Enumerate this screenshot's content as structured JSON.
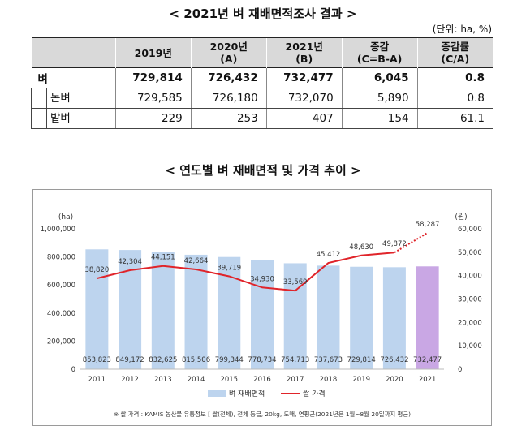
{
  "table_title": "< 2021년 벼 재배면적조사 결과 >",
  "unit_note": "(단위: ha, %)",
  "table": {
    "headers": [
      "",
      "2019년",
      "2020년\n(A)",
      "2021년\n(B)",
      "증감\n(C=B-A)",
      "증감률\n(C/A)"
    ],
    "rows": [
      {
        "label": "벼",
        "values": [
          "729,814",
          "726,432",
          "732,477",
          "6,045",
          "0.8"
        ]
      },
      {
        "label": "논벼",
        "values": [
          "729,585",
          "726,180",
          "732,070",
          "5,890",
          "0.8"
        ]
      },
      {
        "label": "밭벼",
        "values": [
          "229",
          "253",
          "407",
          "154",
          "61.1"
        ]
      }
    ]
  },
  "chart_title": "< 연도별 벼 재배면적 및 가격 추이 >",
  "footnote": "※ 쌀 가격 : KAMIS 농산물 유통정보 [ 쌀(전체), 전체 등급, 20kg, 도매, 연평균(2021년은 1월~8월 20일까지 평균)",
  "chart_data": {
    "type": "bar",
    "title": "< 연도별 벼 재배면적 및 가격 추이 >",
    "categories": [
      "2011",
      "2012",
      "2013",
      "2014",
      "2015",
      "2016",
      "2017",
      "2018",
      "2019",
      "2020",
      "2021"
    ],
    "series": [
      {
        "name": "벼 재배면적",
        "type": "bar",
        "axis": "left",
        "values": [
          853823,
          849172,
          832625,
          815506,
          799344,
          778734,
          754713,
          737673,
          729814,
          726432,
          732477
        ],
        "labels": [
          "853,823",
          "849,172",
          "832,625",
          "815,506",
          "799,344",
          "778,734",
          "754,713",
          "737,673",
          "729,814",
          "726,432",
          "732,477"
        ],
        "color": "#bdd4ee",
        "highlight_color": "#c9a7e4"
      },
      {
        "name": "쌀 가격",
        "type": "line",
        "axis": "right",
        "values": [
          38820,
          42304,
          44151,
          42664,
          39719,
          34930,
          33569,
          45412,
          48630,
          49872,
          58287
        ],
        "labels": [
          "38,820",
          "42,304",
          "44,151",
          "42,664",
          "39,719",
          "34,930",
          "33,569",
          "45,412",
          "48,630",
          "49,872",
          "58,287"
        ],
        "color": "#e0242a",
        "last_segment_dashed": true
      }
    ],
    "ylabel_left": "(ha)",
    "ylabel_right": "(원)",
    "ylim_left": [
      0,
      1000000
    ],
    "ylim_right": [
      0,
      60000
    ],
    "yticks_left": [
      "0",
      "200,000",
      "400,000",
      "600,000",
      "800,000",
      "1,000,000"
    ],
    "yticks_right": [
      "0",
      "10,000",
      "20,000",
      "30,000",
      "40,000",
      "50,000",
      "60,000"
    ],
    "grid": false,
    "legend_position": "bottom"
  }
}
